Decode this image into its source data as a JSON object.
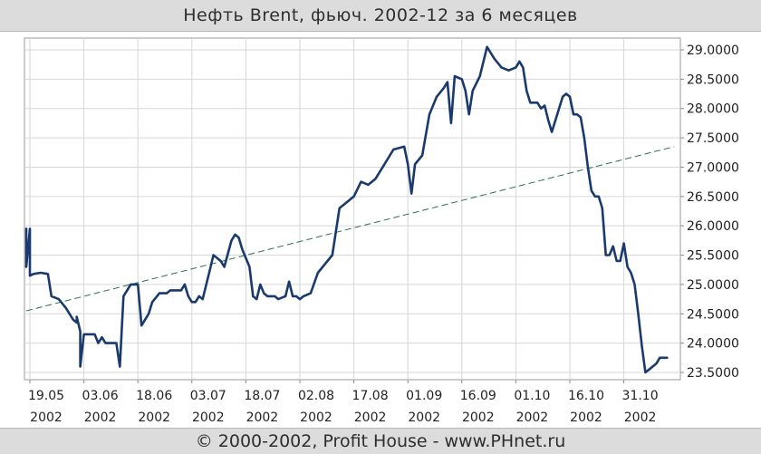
{
  "header": {
    "title": "Нефть Brent, фьюч. 2002-12 за 6 месяцев"
  },
  "footer": {
    "copyright": "© 2000-2002, Profit House - www.PHnet.ru"
  },
  "chart_data": {
    "type": "line",
    "title": "Нефть Brent, фьюч. 2002-12 за 6 месяцев",
    "xlabel": "",
    "ylabel": "",
    "ylim": [
      23.5,
      29.0
    ],
    "y_ticks": [
      "29.0000",
      "28.5000",
      "28.0000",
      "27.5000",
      "27.0000",
      "26.5000",
      "26.0000",
      "25.5000",
      "25.0000",
      "24.5000",
      "24.0000",
      "23.5000"
    ],
    "x_ticks": [
      {
        "day": "19.05",
        "year": "2002"
      },
      {
        "day": "03.06",
        "year": "2002"
      },
      {
        "day": "18.06",
        "year": "2002"
      },
      {
        "day": "03.07",
        "year": "2002"
      },
      {
        "day": "18.07",
        "year": "2002"
      },
      {
        "day": "02.08",
        "year": "2002"
      },
      {
        "day": "17.08",
        "year": "2002"
      },
      {
        "day": "01.09",
        "year": "2002"
      },
      {
        "day": "16.09",
        "year": "2002"
      },
      {
        "day": "01.10",
        "year": "2002"
      },
      {
        "day": "16.10",
        "year": "2002"
      },
      {
        "day": "31.10",
        "year": "2002"
      }
    ],
    "grid": true,
    "colors": {
      "price": "#1a3a6e",
      "trend": "#2f6e4f",
      "grid": "#d6d6d6"
    },
    "series": [
      {
        "values": [
          [
            "2002-05-18",
            25.95
          ],
          [
            "2002-05-18",
            25.3
          ],
          [
            "2002-05-19",
            25.95
          ],
          [
            "2002-05-19",
            25.15
          ],
          [
            "2002-05-20",
            25.18
          ],
          [
            "2002-05-22",
            25.2
          ],
          [
            "2002-05-24",
            25.18
          ],
          [
            "2002-05-25",
            24.8
          ],
          [
            "2002-05-27",
            24.75
          ],
          [
            "2002-05-29",
            24.6
          ],
          [
            "2002-05-31",
            24.4
          ],
          [
            "2002-06-01",
            24.35
          ],
          [
            "2002-06-01",
            24.45
          ],
          [
            "2002-06-02",
            24.2
          ],
          [
            "2002-06-02",
            23.6
          ],
          [
            "2002-06-03",
            24.15
          ],
          [
            "2002-06-06",
            24.15
          ],
          [
            "2002-06-07",
            24.0
          ],
          [
            "2002-06-08",
            24.1
          ],
          [
            "2002-06-09",
            24.0
          ],
          [
            "2002-06-12",
            24.0
          ],
          [
            "2002-06-13",
            23.6
          ],
          [
            "2002-06-14",
            24.8
          ],
          [
            "2002-06-16",
            25.0
          ],
          [
            "2002-06-18",
            25.0
          ],
          [
            "2002-06-19",
            24.3
          ],
          [
            "2002-06-21",
            24.5
          ],
          [
            "2002-06-22",
            24.7
          ],
          [
            "2002-06-24",
            24.85
          ],
          [
            "2002-06-26",
            24.85
          ],
          [
            "2002-06-27",
            24.9
          ],
          [
            "2002-06-30",
            24.9
          ],
          [
            "2002-07-01",
            25.0
          ],
          [
            "2002-07-02",
            24.8
          ],
          [
            "2002-07-03",
            24.7
          ],
          [
            "2002-07-04",
            24.7
          ],
          [
            "2002-07-05",
            24.8
          ],
          [
            "2002-07-06",
            24.75
          ],
          [
            "2002-07-08",
            25.25
          ],
          [
            "2002-07-09",
            25.5
          ],
          [
            "2002-07-11",
            25.4
          ],
          [
            "2002-07-12",
            25.3
          ],
          [
            "2002-07-14",
            25.75
          ],
          [
            "2002-07-15",
            25.85
          ],
          [
            "2002-07-16",
            25.8
          ],
          [
            "2002-07-17",
            25.6
          ],
          [
            "2002-07-19",
            25.3
          ],
          [
            "2002-07-20",
            24.8
          ],
          [
            "2002-07-21",
            24.75
          ],
          [
            "2002-07-22",
            25.0
          ],
          [
            "2002-07-23",
            24.85
          ],
          [
            "2002-07-24",
            24.8
          ],
          [
            "2002-07-26",
            24.8
          ],
          [
            "2002-07-27",
            24.75
          ],
          [
            "2002-07-29",
            24.8
          ],
          [
            "2002-07-30",
            25.05
          ],
          [
            "2002-07-31",
            24.8
          ],
          [
            "2002-08-01",
            24.8
          ],
          [
            "2002-08-02",
            24.75
          ],
          [
            "2002-08-03",
            24.8
          ],
          [
            "2002-08-05",
            24.85
          ],
          [
            "2002-08-07",
            25.2
          ],
          [
            "2002-08-09",
            25.35
          ],
          [
            "2002-08-11",
            25.5
          ],
          [
            "2002-08-13",
            26.3
          ],
          [
            "2002-08-15",
            26.4
          ],
          [
            "2002-08-17",
            26.5
          ],
          [
            "2002-08-19",
            26.75
          ],
          [
            "2002-08-21",
            26.7
          ],
          [
            "2002-08-23",
            26.8
          ],
          [
            "2002-08-24",
            26.9
          ],
          [
            "2002-08-25",
            27.0
          ],
          [
            "2002-08-26",
            27.1
          ],
          [
            "2002-08-27",
            27.2
          ],
          [
            "2002-08-28",
            27.3
          ],
          [
            "2002-08-31",
            27.35
          ],
          [
            "2002-09-01",
            27.05
          ],
          [
            "2002-09-02",
            26.55
          ],
          [
            "2002-09-03",
            27.05
          ],
          [
            "2002-09-05",
            27.2
          ],
          [
            "2002-09-07",
            27.9
          ],
          [
            "2002-09-09",
            28.2
          ],
          [
            "2002-09-11",
            28.35
          ],
          [
            "2002-09-12",
            28.45
          ],
          [
            "2002-09-13",
            27.75
          ],
          [
            "2002-09-14",
            28.55
          ],
          [
            "2002-09-16",
            28.5
          ],
          [
            "2002-09-17",
            28.3
          ],
          [
            "2002-09-18",
            27.9
          ],
          [
            "2002-09-19",
            28.3
          ],
          [
            "2002-09-21",
            28.55
          ],
          [
            "2002-09-23",
            29.05
          ],
          [
            "2002-09-25",
            28.85
          ],
          [
            "2002-09-27",
            28.7
          ],
          [
            "2002-09-29",
            28.65
          ],
          [
            "2002-10-01",
            28.7
          ],
          [
            "2002-10-02",
            28.8
          ],
          [
            "2002-10-03",
            28.7
          ],
          [
            "2002-10-04",
            28.3
          ],
          [
            "2002-10-05",
            28.1
          ],
          [
            "2002-10-07",
            28.1
          ],
          [
            "2002-10-08",
            28.0
          ],
          [
            "2002-10-09",
            28.05
          ],
          [
            "2002-10-10",
            27.8
          ],
          [
            "2002-10-11",
            27.6
          ],
          [
            "2002-10-12",
            27.8
          ],
          [
            "2002-10-13",
            28.0
          ],
          [
            "2002-10-14",
            28.2
          ],
          [
            "2002-10-15",
            28.25
          ],
          [
            "2002-10-16",
            28.2
          ],
          [
            "2002-10-17",
            27.9
          ],
          [
            "2002-10-18",
            27.9
          ],
          [
            "2002-10-19",
            27.85
          ],
          [
            "2002-10-20",
            27.5
          ],
          [
            "2002-10-21",
            27.0
          ],
          [
            "2002-10-22",
            26.6
          ],
          [
            "2002-10-23",
            26.5
          ],
          [
            "2002-10-24",
            26.5
          ],
          [
            "2002-10-25",
            26.3
          ],
          [
            "2002-10-26",
            25.5
          ],
          [
            "2002-10-27",
            25.5
          ],
          [
            "2002-10-28",
            25.65
          ],
          [
            "2002-10-29",
            25.4
          ],
          [
            "2002-10-30",
            25.4
          ],
          [
            "2002-10-31",
            25.7
          ],
          [
            "2002-11-01",
            25.3
          ],
          [
            "2002-11-02",
            25.2
          ],
          [
            "2002-11-03",
            25.0
          ],
          [
            "2002-11-04",
            24.5
          ],
          [
            "2002-11-05",
            23.95
          ],
          [
            "2002-11-06",
            23.5
          ],
          [
            "2002-11-07",
            23.55
          ],
          [
            "2002-11-09",
            23.65
          ],
          [
            "2002-11-10",
            23.75
          ],
          [
            "2002-11-12",
            23.75
          ]
        ]
      },
      {
        "values": [
          [
            "2002-05-18",
            24.55
          ],
          [
            "2002-11-14",
            27.35
          ]
        ]
      }
    ]
  }
}
